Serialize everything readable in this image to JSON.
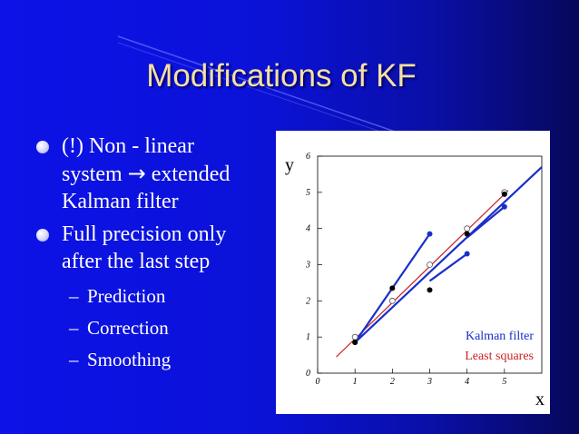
{
  "slide": {
    "title": "Modifications of KF",
    "bullets": [
      {
        "lines": [
          "(!) Non - linear",
          "system ",
          "Kalman filter"
        ],
        "arrow_word": "extended"
      },
      {
        "lines": [
          "Full precision only",
          "after the last step"
        ]
      }
    ],
    "sub_bullets": [
      "Prediction",
      "Correction",
      "Smoothing"
    ],
    "dash": "–",
    "arrow": "→"
  },
  "colors": {
    "background": "#0b12d8",
    "title": "#f5e0a0",
    "text": "#ffffff",
    "kalman": "#1a2fc8",
    "least_squares": "#cc2222"
  },
  "chart_data": {
    "type": "scatter",
    "xlabel": "x",
    "ylabel": "y",
    "xlim": [
      0,
      6
    ],
    "ylim": [
      0,
      6
    ],
    "x_ticks": [
      "0",
      "1",
      "2",
      "3",
      "4",
      "5"
    ],
    "y_ticks": [
      "0",
      "1",
      "2",
      "3",
      "4",
      "5",
      "6"
    ],
    "legend": [
      "Kalman filter",
      "Least squares"
    ],
    "legend_position": "bottom-right",
    "series": [
      {
        "name": "Kalman filter",
        "kind": "line",
        "segments": [
          [
            [
              1,
              0.85
            ],
            [
              2,
              2.35
            ],
            [
              3,
              3.85
            ]
          ],
          [
            [
              3,
              2.55
            ],
            [
              4,
              3.3
            ]
          ],
          [
            [
              4,
              3.75
            ],
            [
              5,
              4.6
            ]
          ],
          [
            [
              1,
              0.85
            ],
            [
              6,
              5.7
            ]
          ]
        ]
      },
      {
        "name": "Least squares",
        "kind": "line",
        "segments": [
          [
            [
              0.5,
              0.45
            ],
            [
              5.1,
              5.05
            ]
          ]
        ]
      },
      {
        "name": "measurements",
        "kind": "scatter",
        "points": [
          [
            1,
            1.0
          ],
          [
            2,
            2.0
          ],
          [
            3,
            3.0
          ],
          [
            4,
            4.0
          ],
          [
            5,
            5.0
          ]
        ]
      },
      {
        "name": "filtered",
        "kind": "scatter",
        "points": [
          [
            1,
            0.85
          ],
          [
            2,
            2.35
          ],
          [
            3,
            2.3
          ],
          [
            4,
            3.85
          ],
          [
            5,
            4.95
          ]
        ]
      },
      {
        "name": "predicted",
        "kind": "scatter",
        "points": [
          [
            3,
            3.85
          ],
          [
            4,
            3.3
          ],
          [
            5,
            4.6
          ]
        ]
      }
    ]
  }
}
